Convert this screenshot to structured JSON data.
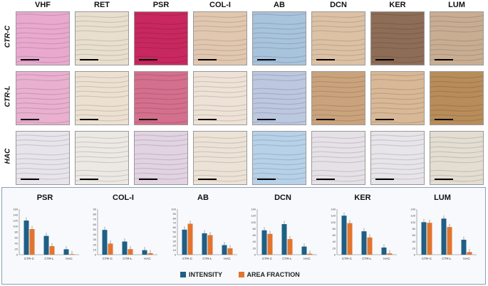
{
  "stains": [
    "VHF",
    "RET",
    "PSR",
    "COL-I",
    "AB",
    "DCN",
    "KER",
    "LUM"
  ],
  "rows": [
    "CTR-C",
    "CTR-L",
    "HAC"
  ],
  "tile_colors": {
    "CTR-C": [
      "#e9a9cf",
      "#e9dfcf",
      "#c8285f",
      "#e1c7b0",
      "#a8c3dc",
      "#dcc1a5",
      "#8e6d57",
      "#c8ad92"
    ],
    "CTR-L": [
      "#e9b0d0",
      "#ece1d1",
      "#d46f8e",
      "#eee2d6",
      "#bcc7e0",
      "#caa37c",
      "#d8b896",
      "#b88d5a"
    ],
    "HAC": [
      "#e8e4ec",
      "#ece8e4",
      "#e2d3e3",
      "#ede2d6",
      "#b7d1e8",
      "#e6e1e6",
      "#e7e4ea",
      "#e3ddd2"
    ]
  },
  "legend": {
    "intensity": "INTENSITY",
    "area_fraction": "AREA FRACTION",
    "intensity_color": "#1f5f85",
    "area_color": "#e2742e"
  },
  "chart_data": [
    {
      "type": "bar",
      "title": "PSR",
      "categories": [
        "CTR-C",
        "CTR-L",
        "HAC"
      ],
      "ylim": [
        0,
        160
      ],
      "yticks": [
        "0",
        "20",
        "40",
        "60",
        "80",
        "100",
        "120",
        "140",
        "160"
      ],
      "series": [
        {
          "name": "INTENSITY",
          "values": [
            120,
            66,
            19
          ]
        },
        {
          "name": "AREA FRACTION",
          "values": [
            90,
            30,
            2
          ]
        }
      ]
    },
    {
      "type": "bar",
      "title": "COL-I",
      "categories": [
        "CTR-C",
        "CTR-L",
        "HAC"
      ],
      "ylim": [
        0,
        90
      ],
      "yticks": [
        "0",
        "10",
        "20",
        "30",
        "40",
        "50",
        "60",
        "70",
        "80",
        "90"
      ],
      "series": [
        {
          "name": "INTENSITY",
          "values": [
            49,
            26,
            9
          ]
        },
        {
          "name": "AREA FRACTION",
          "values": [
            22,
            11,
            3
          ]
        }
      ]
    },
    {
      "type": "bar",
      "title": "AB",
      "categories": [
        "CTR-C",
        "CTR-L",
        "HAC"
      ],
      "ylim": [
        0,
        100
      ],
      "yticks": [
        "0",
        "10",
        "20",
        "30",
        "40",
        "50",
        "60",
        "70",
        "80",
        "90",
        "100"
      ],
      "series": [
        {
          "name": "INTENSITY",
          "values": [
            55,
            47,
            21
          ]
        },
        {
          "name": "AREA FRACTION",
          "values": [
            68,
            43,
            14
          ]
        }
      ]
    },
    {
      "type": "bar",
      "title": "DCN",
      "categories": [
        "CTR-C",
        "CTR-L",
        "HAC"
      ],
      "ylim": [
        0,
        140
      ],
      "yticks": [
        "0",
        "20",
        "40",
        "60",
        "80",
        "100",
        "120",
        "140"
      ],
      "series": [
        {
          "name": "INTENSITY",
          "values": [
            75,
            94,
            25
          ]
        },
        {
          "name": "AREA FRACTION",
          "values": [
            64,
            48,
            3
          ]
        }
      ]
    },
    {
      "type": "bar",
      "title": "KER",
      "categories": [
        "CTR-C",
        "CTR-L",
        "HAC"
      ],
      "ylim": [
        0,
        140
      ],
      "yticks": [
        "0",
        "20",
        "40",
        "60",
        "80",
        "100",
        "120",
        "140"
      ],
      "series": [
        {
          "name": "INTENSITY",
          "values": [
            120,
            72,
            22
          ]
        },
        {
          "name": "AREA FRACTION",
          "values": [
            97,
            53,
            4
          ]
        }
      ]
    },
    {
      "type": "bar",
      "title": "LUM",
      "categories": [
        "CTR-C",
        "CTR-L",
        "HAC"
      ],
      "ylim": [
        0,
        140
      ],
      "yticks": [
        "0",
        "20",
        "40",
        "60",
        "80",
        "100",
        "120",
        "140"
      ],
      "series": [
        {
          "name": "INTENSITY",
          "values": [
            100,
            111,
            46
          ]
        },
        {
          "name": "AREA FRACTION",
          "values": [
            98,
            85,
            8
          ]
        }
      ]
    }
  ]
}
